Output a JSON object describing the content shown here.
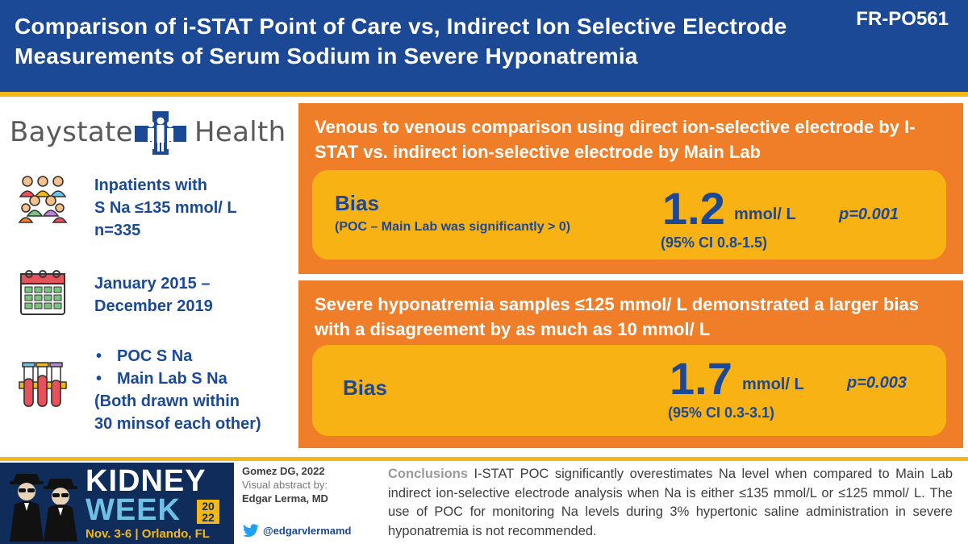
{
  "header": {
    "title": "Comparison of i-STAT Point of Care vs, Indirect Ion Selective Electrode Measurements of Serum Sodium in Severe Hyponatremia",
    "code": "FR-PO561"
  },
  "logo": {
    "left_text": "Baystate",
    "right_text": "Health"
  },
  "left_info": {
    "population": [
      "Inpatients with",
      "S Na ≤135 mmol/ L",
      "n=335"
    ],
    "period": [
      "January 2015 –",
      "December 2019"
    ],
    "samples": [
      "POC S Na",
      "Main Lab S Na"
    ],
    "samples_note": [
      "(Both drawn within",
      "30 minsof each other)"
    ]
  },
  "panel1": {
    "title": "Venous to venous comparison using direct ion-selective electrode by I-STAT vs. indirect ion-selective electrode by Main Lab",
    "bias_label": "Bias",
    "bias_sub": "(POC – Main Lab was significantly  > 0)",
    "value": "1.2",
    "unit": "mmol/ L",
    "ci": "(95%  CI 0.8-1.5)",
    "p": "p=0.001"
  },
  "panel2": {
    "title": "Severe hyponatremia samples ≤125 mmol/ L demonstrated a larger bias with a disagreement by as much as 10 mmol/ L",
    "bias_label": "Bias",
    "value": "1.7",
    "unit": "mmol/ L",
    "ci": "(95%  CI 0.3-3.1)",
    "p": "p=0.003"
  },
  "footer": {
    "kidney": "KIDNEY",
    "week": "WEEK",
    "year_top": "20",
    "year_bottom": "22",
    "dates": "Nov. 3-6 | Orlando, FL",
    "author": "Gomez DG, 2022",
    "abstract_by": "Visual abstract by:",
    "abstract_author": "Edgar Lerma, MD",
    "twitter": "@edgarvlermamd",
    "conclusion_head": "Conclusions",
    "conclusion_body": " I-STAT POC significantly overestimates Na level when compared to Main Lab indirect ion-selective electrode analysis when Na is either ≤135 mmol/L or ≤125 mmol/  L. The use of POC for monitoring Na levels during 3% hypertonic saline administration in severe hyponatremia is not recommended."
  },
  "colors": {
    "header_blue": "#1b4995",
    "accent_gold": "#f3b716",
    "panel_orange": "#f07d28",
    "result_yellow": "#f9b214",
    "footer_navy": "#0f2c5b"
  }
}
